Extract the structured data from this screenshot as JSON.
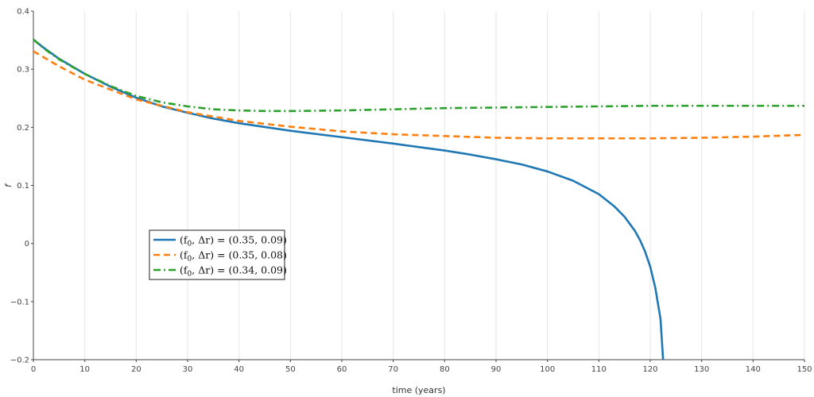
{
  "chart_data": {
    "type": "line",
    "xlabel": "time (years)",
    "ylabel": "f",
    "xlim": [
      0,
      150
    ],
    "ylim": [
      -0.2,
      0.4
    ],
    "x_ticks": [
      0,
      10,
      20,
      30,
      40,
      50,
      60,
      70,
      80,
      90,
      100,
      110,
      120,
      130,
      140,
      150
    ],
    "x_tick_labels": [
      "0",
      "10",
      "20",
      "30",
      "40",
      "50",
      "60",
      "70",
      "80",
      "90",
      "100",
      "110",
      "120",
      "130",
      "140",
      "150"
    ],
    "y_ticks": [
      -0.2,
      -0.1,
      0,
      0.1,
      0.2,
      0.3,
      0.4
    ],
    "y_tick_labels": [
      "−0.2",
      "−0.1",
      "0",
      "0.1",
      "0.2",
      "0.3",
      "0.4"
    ],
    "grid": "vertical",
    "legend_position": "center-left",
    "series": [
      {
        "name": "(f₀, Δr) = (0.35, 0.09)",
        "color": "#1f77b4",
        "style": "solid",
        "x": [
          0,
          2,
          5,
          10,
          15,
          20,
          25,
          30,
          35,
          40,
          50,
          60,
          70,
          80,
          85,
          90,
          95,
          100,
          105,
          110,
          113,
          115,
          117,
          118,
          119,
          120,
          121,
          122,
          122.5
        ],
        "y": [
          0.351,
          0.337,
          0.318,
          0.292,
          0.27,
          0.251,
          0.236,
          0.225,
          0.215,
          0.207,
          0.194,
          0.183,
          0.172,
          0.16,
          0.153,
          0.145,
          0.136,
          0.124,
          0.108,
          0.085,
          0.064,
          0.046,
          0.022,
          0.006,
          -0.014,
          -0.04,
          -0.077,
          -0.13,
          -0.2
        ]
      },
      {
        "name": "(f₀, Δr) = (0.35, 0.08)",
        "color": "#ff7f0e",
        "style": "dashed",
        "x": [
          0,
          5,
          10,
          20,
          30,
          40,
          50,
          60,
          70,
          80,
          90,
          100,
          110,
          120,
          130,
          140,
          150
        ],
        "y": [
          0.331,
          0.305,
          0.282,
          0.248,
          0.226,
          0.211,
          0.201,
          0.193,
          0.188,
          0.185,
          0.182,
          0.181,
          0.181,
          0.181,
          0.182,
          0.184,
          0.187
        ]
      },
      {
        "name": "(f₀, Δr) = (0.34, 0.09)",
        "color": "#2ca02c",
        "style": "dashdot",
        "x": [
          0,
          2,
          5,
          10,
          15,
          20,
          25,
          30,
          35,
          40,
          45,
          50,
          60,
          70,
          80,
          90,
          100,
          110,
          120,
          130,
          140,
          150
        ],
        "y": [
          0.351,
          0.336,
          0.317,
          0.292,
          0.271,
          0.254,
          0.243,
          0.236,
          0.231,
          0.229,
          0.228,
          0.228,
          0.229,
          0.231,
          0.233,
          0.234,
          0.235,
          0.236,
          0.237,
          0.237,
          0.237,
          0.237
        ]
      }
    ],
    "legend_entries": [
      {
        "lhs": "(f",
        "sub": "0",
        "rest": ", Δr) = (0.35, 0.09)"
      },
      {
        "lhs": "(f",
        "sub": "0",
        "rest": ", Δr) = (0.35, 0.08)"
      },
      {
        "lhs": "(f",
        "sub": "0",
        "rest": ", Δr) = (0.34, 0.09)"
      }
    ]
  }
}
